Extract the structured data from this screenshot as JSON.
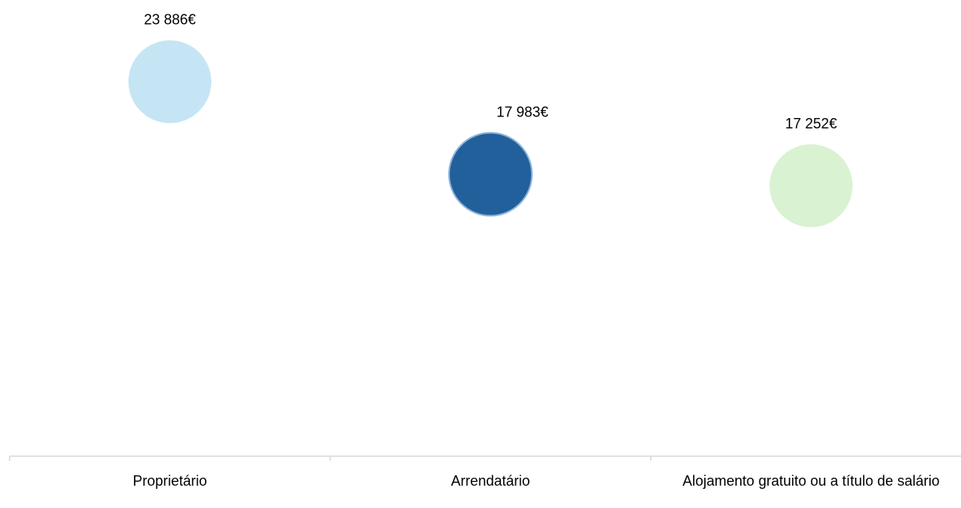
{
  "chart_data": {
    "type": "dot",
    "categories": [
      "Proprietário",
      "Arrendatário",
      "Alojamento gratuito ou a título de salário"
    ],
    "values": [
      23886,
      17983,
      17252
    ],
    "value_labels": [
      "23 886€",
      "17 983€",
      "17 252€"
    ],
    "colors": [
      "#c5e5f5",
      "#21609b",
      "#d9f2d2"
    ],
    "ylim": [
      0,
      29000
    ]
  }
}
